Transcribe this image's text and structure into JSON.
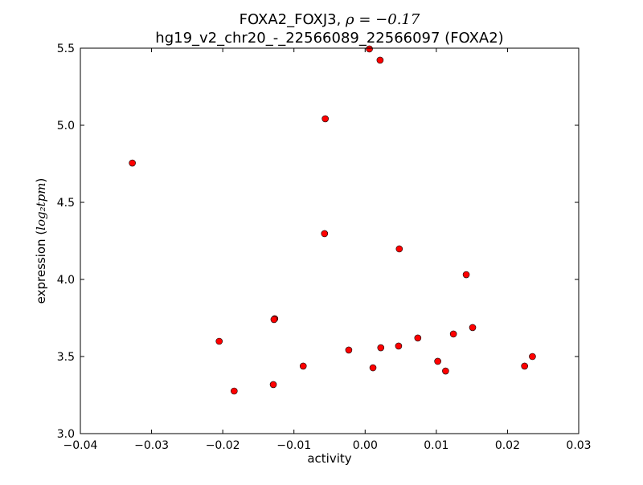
{
  "chart_data": {
    "type": "scatter",
    "title_line1": "FOXA2_FOXJ3, ",
    "title_rho": "ρ = −0.17",
    "title_line2": "hg19_v2_chr20_-_22566089_22566097 (FOXA2)",
    "xlabel": "activity",
    "ylabel_prefix": "expression (",
    "ylabel_math": "log₂tpm",
    "ylabel_suffix": ")",
    "xlim": [
      -0.04,
      0.03
    ],
    "ylim": [
      3.0,
      5.5
    ],
    "xticks": [
      "−0.04",
      "−0.03",
      "−0.02",
      "−0.01",
      "0.00",
      "0.01",
      "0.02",
      "0.03"
    ],
    "xtick_values": [
      -0.04,
      -0.03,
      -0.02,
      -0.01,
      0.0,
      0.01,
      0.02,
      0.03
    ],
    "yticks": [
      "3.0",
      "3.5",
      "4.0",
      "4.5",
      "5.0",
      "5.5"
    ],
    "ytick_values": [
      3.0,
      3.5,
      4.0,
      4.5,
      5.0,
      5.5
    ],
    "marker_color": "#ff0000",
    "points": [
      [
        -0.0327,
        4.755
      ],
      [
        0.0006,
        5.495
      ],
      [
        0.0021,
        5.422
      ],
      [
        -0.0056,
        5.042
      ],
      [
        -0.0057,
        4.297
      ],
      [
        0.0048,
        4.198
      ],
      [
        0.0142,
        4.031
      ],
      [
        -0.0127,
        3.745
      ],
      [
        -0.0128,
        3.74
      ],
      [
        -0.0205,
        3.599
      ],
      [
        -0.0184,
        3.276
      ],
      [
        -0.0129,
        3.318
      ],
      [
        -0.0087,
        3.438
      ],
      [
        -0.0023,
        3.542
      ],
      [
        0.0011,
        3.427
      ],
      [
        0.0022,
        3.557
      ],
      [
        0.0047,
        3.568
      ],
      [
        0.0074,
        3.62
      ],
      [
        0.0102,
        3.469
      ],
      [
        0.0113,
        3.406
      ],
      [
        0.0124,
        3.646
      ],
      [
        0.0151,
        3.688
      ],
      [
        0.0224,
        3.438
      ],
      [
        0.0235,
        3.5
      ]
    ]
  }
}
